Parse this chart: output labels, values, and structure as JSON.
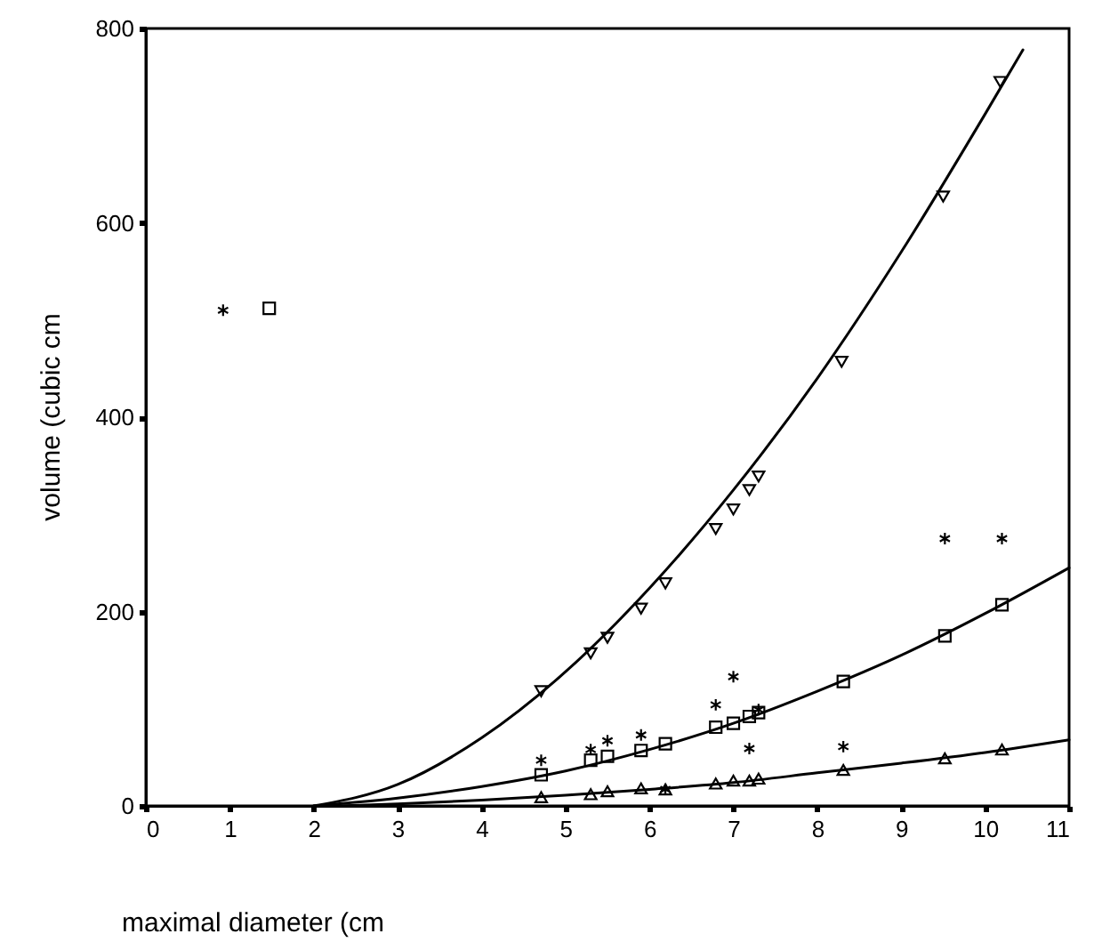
{
  "chart_data": {
    "type": "scatter",
    "xlabel": "maximal diameter (cm",
    "ylabel": "volume (cubic cm",
    "xlim": [
      0,
      11
    ],
    "xticks": [
      0,
      1,
      2,
      3,
      4,
      5,
      6,
      7,
      8,
      9,
      10,
      11
    ],
    "ylim": [
      0,
      800
    ],
    "yticks": [
      0,
      200,
      400,
      600,
      800
    ],
    "grid": false,
    "series": [
      {
        "marker": "triangle-down",
        "color": "#000000",
        "x": [
          4.71,
          5.3,
          5.5,
          5.9,
          6.19,
          6.79,
          7.0,
          7.19,
          7.3,
          8.29,
          9.5,
          10.18
        ],
        "values": [
          118,
          157,
          173,
          203,
          229,
          285,
          305,
          325,
          339,
          457,
          627,
          745
        ]
      },
      {
        "marker": "square",
        "color": "#000000",
        "x": [
          1.47,
          4.71,
          5.3,
          5.5,
          5.9,
          6.19,
          6.79,
          7.0,
          7.19,
          7.3,
          8.31,
          9.52,
          10.2
        ],
        "values": [
          512,
          32,
          47,
          51,
          57,
          64,
          81,
          85,
          92,
          96,
          128,
          175,
          207
        ]
      },
      {
        "marker": "triangle",
        "color": "#000000",
        "x": [
          4.71,
          5.3,
          5.5,
          5.9,
          6.19,
          6.79,
          7.0,
          7.19,
          7.3,
          8.31,
          9.52,
          10.2
        ],
        "values": [
          9,
          12,
          15,
          18,
          17,
          23,
          26,
          26,
          28,
          37,
          49,
          58
        ]
      },
      {
        "marker": "cross",
        "color": "#000000",
        "x": [
          0.92,
          4.71,
          5.3,
          5.5,
          5.9,
          6.19,
          6.79,
          7.0,
          7.19,
          7.3,
          8.31,
          9.52,
          10.2
        ],
        "values": [
          510,
          47,
          58,
          67,
          73,
          17,
          104,
          133,
          59,
          99,
          61,
          275,
          275
        ]
      },
      {
        "type": "line",
        "marker": "none",
        "color": "#000000",
        "x": [
          2,
          3,
          4,
          5,
          6,
          7,
          8,
          9,
          10,
          10.45
        ],
        "values": [
          0,
          22,
          70,
          138,
          224,
          325,
          440,
          570,
          712,
          778
        ]
      },
      {
        "type": "line",
        "marker": "none",
        "color": "#000000",
        "x": [
          2,
          3,
          4,
          5,
          6,
          7,
          8,
          9,
          10,
          11
        ],
        "values": [
          0,
          8,
          20,
          36,
          58,
          85,
          118,
          155,
          198,
          245
        ]
      },
      {
        "type": "line",
        "marker": "none",
        "color": "#000000",
        "x": [
          2.3,
          3,
          4,
          5,
          6,
          7,
          8,
          9,
          10,
          11
        ],
        "values": [
          0,
          2,
          6,
          11,
          17,
          24,
          34,
          44,
          55,
          68
        ]
      }
    ]
  }
}
